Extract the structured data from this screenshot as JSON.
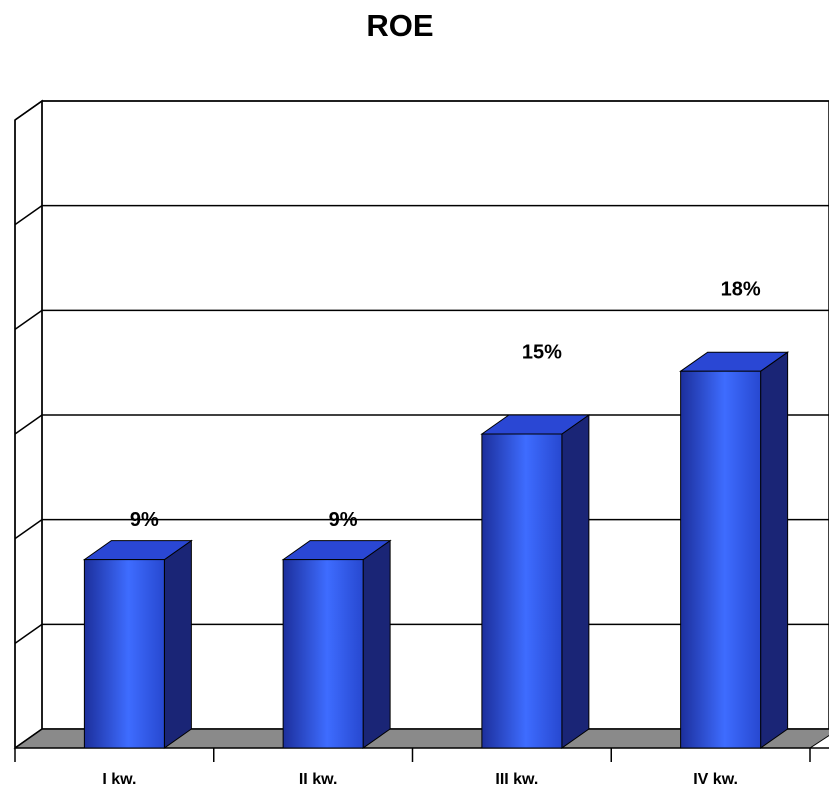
{
  "chart_data": {
    "type": "bar",
    "title": "ROE",
    "categories": [
      "I kw.",
      "II kw.",
      "III kw.",
      "IV kw."
    ],
    "values": [
      9,
      9,
      15,
      18
    ],
    "value_labels": [
      "9%",
      "9%",
      "15%",
      "18%"
    ],
    "color": "#2f5cf0",
    "ylim": [
      0,
      30
    ],
    "yticks": [
      0,
      5,
      10,
      15,
      20,
      25,
      30
    ],
    "grid": true
  }
}
